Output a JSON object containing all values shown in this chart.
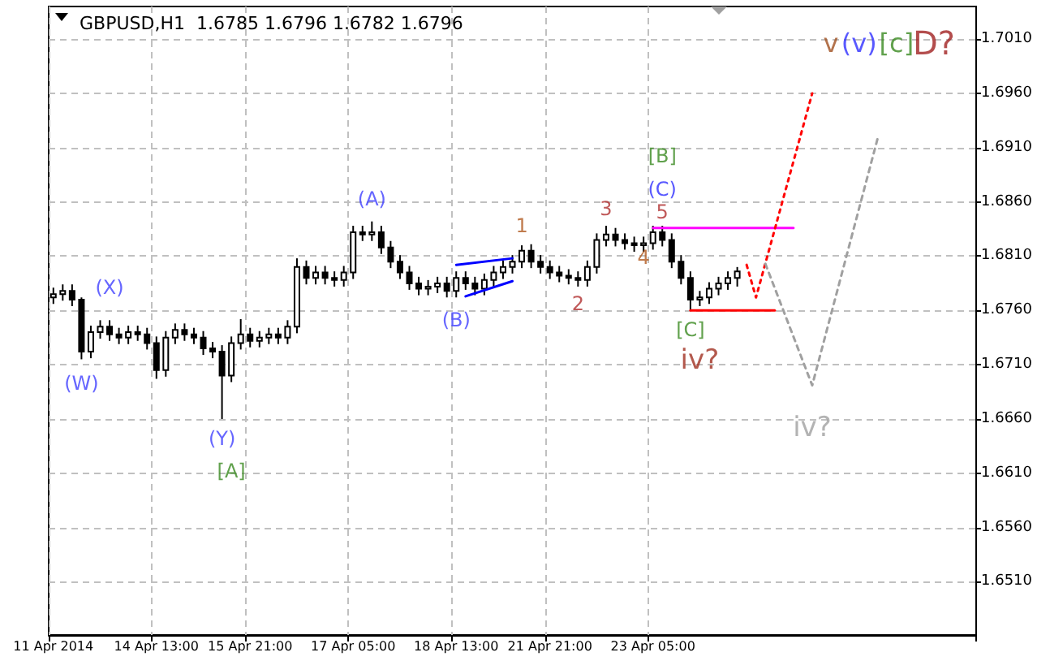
{
  "chart_data": {
    "type": "candlestick",
    "title": "GBPUSD,H1  1.6785 1.6796 1.6782 1.6796",
    "color": "#000000",
    "categories": [
      "11 Apr 2014",
      null,
      null,
      null,
      null,
      null,
      null,
      null,
      null,
      null,
      null,
      "14 Apr 13:00",
      null,
      null,
      null,
      null,
      null,
      null,
      null,
      null,
      null,
      "15 Apr 21:00",
      null,
      null,
      null,
      null,
      null,
      null,
      null,
      null,
      null,
      null,
      "17 Apr 05:00",
      null,
      null,
      null,
      null,
      null,
      null,
      null,
      null,
      null,
      null,
      "18 Apr 13:00",
      null,
      null,
      null,
      null,
      null,
      null,
      null,
      null,
      null,
      "21 Apr 21:00",
      null,
      null,
      null,
      null,
      null,
      null,
      null,
      null,
      null,
      null,
      "23 Apr 05:00",
      null,
      null,
      null,
      null,
      null,
      null,
      null,
      null,
      null,
      null,
      null,
      null,
      null,
      null,
      null,
      null,
      null,
      null,
      null,
      null,
      null,
      null,
      null,
      null,
      null,
      null,
      null,
      null,
      null,
      null,
      null,
      null,
      null,
      null
    ],
    "ohlc": [
      [
        1.6772,
        1.6781,
        1.6766,
        1.6775
      ],
      [
        1.6775,
        1.6784,
        1.6769,
        1.6778
      ],
      [
        1.6778,
        1.6784,
        1.6764,
        1.677
      ],
      [
        1.677,
        1.6772,
        1.6715,
        1.6722
      ],
      [
        1.6722,
        1.6746,
        1.6716,
        1.674
      ],
      [
        1.674,
        1.6751,
        1.6734,
        1.6745
      ],
      [
        1.6745,
        1.6751,
        1.6732,
        1.6738
      ],
      [
        1.6738,
        1.6744,
        1.6729,
        1.6735
      ],
      [
        1.6735,
        1.6746,
        1.6729,
        1.674
      ],
      [
        1.674,
        1.6746,
        1.6732,
        1.6738
      ],
      [
        1.6738,
        1.6744,
        1.6724,
        1.673
      ],
      [
        1.673,
        1.6736,
        1.6697,
        1.6705
      ],
      [
        1.6705,
        1.6741,
        1.6699,
        1.6735
      ],
      [
        1.6735,
        1.6748,
        1.6729,
        1.6742
      ],
      [
        1.6742,
        1.6748,
        1.6732,
        1.6738
      ],
      [
        1.6738,
        1.6744,
        1.6729,
        1.6735
      ],
      [
        1.6735,
        1.6741,
        1.6719,
        1.6725
      ],
      [
        1.6725,
        1.6731,
        1.6716,
        1.6722
      ],
      [
        1.6722,
        1.6728,
        1.666,
        1.67
      ],
      [
        1.67,
        1.6736,
        1.6694,
        1.673
      ],
      [
        1.673,
        1.6752,
        1.6724,
        1.6738
      ],
      [
        1.6738,
        1.6744,
        1.6726,
        1.6732
      ],
      [
        1.6732,
        1.6741,
        1.6726,
        1.6735
      ],
      [
        1.6735,
        1.6744,
        1.6729,
        1.6738
      ],
      [
        1.6738,
        1.6744,
        1.6729,
        1.6735
      ],
      [
        1.6735,
        1.6751,
        1.6729,
        1.6745
      ],
      [
        1.6745,
        1.6808,
        1.6739,
        1.68
      ],
      [
        1.68,
        1.6806,
        1.6784,
        1.679
      ],
      [
        1.679,
        1.6801,
        1.6784,
        1.6795
      ],
      [
        1.6795,
        1.6801,
        1.6784,
        1.679
      ],
      [
        1.679,
        1.6796,
        1.6782,
        1.6788
      ],
      [
        1.6788,
        1.6801,
        1.6782,
        1.6795
      ],
      [
        1.6795,
        1.6838,
        1.6789,
        1.6832
      ],
      [
        1.6832,
        1.6838,
        1.6824,
        1.683
      ],
      [
        1.683,
        1.6842,
        1.6824,
        1.6832
      ],
      [
        1.6832,
        1.6838,
        1.6812,
        1.6818
      ],
      [
        1.6818,
        1.6824,
        1.6799,
        1.6805
      ],
      [
        1.6805,
        1.6811,
        1.6789,
        1.6795
      ],
      [
        1.6795,
        1.6801,
        1.6779,
        1.6785
      ],
      [
        1.6785,
        1.6791,
        1.6774,
        1.678
      ],
      [
        1.678,
        1.6788,
        1.6774,
        1.6782
      ],
      [
        1.6782,
        1.6791,
        1.6776,
        1.6785
      ],
      [
        1.6785,
        1.6791,
        1.6772,
        1.6778
      ],
      [
        1.6778,
        1.6796,
        1.6772,
        1.679
      ],
      [
        1.679,
        1.6796,
        1.6779,
        1.6785
      ],
      [
        1.6785,
        1.6791,
        1.6774,
        1.678
      ],
      [
        1.678,
        1.6794,
        1.6774,
        1.6788
      ],
      [
        1.6788,
        1.6801,
        1.6782,
        1.6795
      ],
      [
        1.6795,
        1.6806,
        1.6789,
        1.68
      ],
      [
        1.68,
        1.6811,
        1.6794,
        1.6805
      ],
      [
        1.6805,
        1.682,
        1.6799,
        1.6815
      ],
      [
        1.6815,
        1.6821,
        1.6799,
        1.6805
      ],
      [
        1.6805,
        1.6811,
        1.6794,
        1.68
      ],
      [
        1.68,
        1.6806,
        1.6789,
        1.6795
      ],
      [
        1.6795,
        1.6801,
        1.6786,
        1.6792
      ],
      [
        1.6792,
        1.6798,
        1.6784,
        1.679
      ],
      [
        1.679,
        1.6796,
        1.6782,
        1.6788
      ],
      [
        1.6788,
        1.6806,
        1.6782,
        1.68
      ],
      [
        1.68,
        1.6831,
        1.6794,
        1.6825
      ],
      [
        1.6825,
        1.6838,
        1.6819,
        1.683
      ],
      [
        1.683,
        1.6836,
        1.6819,
        1.6825
      ],
      [
        1.6825,
        1.6831,
        1.6816,
        1.6822
      ],
      [
        1.6822,
        1.6828,
        1.6814,
        1.682
      ],
      [
        1.682,
        1.6828,
        1.6814,
        1.6822
      ],
      [
        1.6822,
        1.6838,
        1.6816,
        1.6832
      ],
      [
        1.6832,
        1.6838,
        1.6819,
        1.6825
      ],
      [
        1.6825,
        1.6831,
        1.6799,
        1.6805
      ],
      [
        1.6805,
        1.6811,
        1.6784,
        1.679
      ],
      [
        1.679,
        1.6796,
        1.676,
        1.677
      ],
      [
        1.677,
        1.6778,
        1.6764,
        1.6772
      ],
      [
        1.6772,
        1.6786,
        1.6766,
        1.678
      ],
      [
        1.678,
        1.6791,
        1.6774,
        1.6785
      ],
      [
        1.6785,
        1.6796,
        1.6779,
        1.679
      ],
      [
        1.679,
        1.68,
        1.6782,
        1.6796
      ],
      null,
      null,
      null,
      null,
      null,
      null,
      null,
      null,
      null,
      null,
      null,
      null,
      null,
      null,
      null,
      null,
      null,
      null,
      null,
      null,
      null,
      null,
      null,
      null,
      null
    ],
    "series": [
      {
        "type": "line",
        "color": "#0000ff",
        "line_style": "solid",
        "values": [
          null,
          null,
          null,
          null,
          null,
          null,
          null,
          null,
          null,
          null,
          null,
          null,
          null,
          null,
          null,
          null,
          null,
          null,
          null,
          null,
          null,
          null,
          null,
          null,
          null,
          null,
          null,
          null,
          null,
          null,
          null,
          null,
          null,
          null,
          null,
          null,
          null,
          null,
          null,
          null,
          null,
          null,
          null,
          1.6802,
          null,
          null,
          null,
          null,
          null,
          1.6808,
          null,
          null,
          null,
          null,
          null,
          null,
          null,
          null,
          null,
          null,
          null,
          null,
          null,
          null,
          null,
          null,
          null,
          null,
          null,
          null,
          null,
          null,
          null,
          null,
          null,
          null,
          null,
          null,
          null,
          null,
          null,
          null,
          null,
          null,
          null,
          null,
          null,
          null,
          null,
          null,
          null,
          null,
          null,
          null,
          null,
          null,
          null,
          null,
          null
        ]
      },
      {
        "type": "line",
        "color": "#0000ff",
        "line_style": "solid",
        "values": [
          null,
          null,
          null,
          null,
          null,
          null,
          null,
          null,
          null,
          null,
          null,
          null,
          null,
          null,
          null,
          null,
          null,
          null,
          null,
          null,
          null,
          null,
          null,
          null,
          null,
          null,
          null,
          null,
          null,
          null,
          null,
          null,
          null,
          null,
          null,
          null,
          null,
          null,
          null,
          null,
          null,
          null,
          null,
          null,
          1.6773,
          null,
          null,
          null,
          null,
          1.6787,
          null,
          null,
          null,
          null,
          null,
          null,
          null,
          null,
          null,
          null,
          null,
          null,
          null,
          null,
          null,
          null,
          null,
          null,
          null,
          null,
          null,
          null,
          null,
          null,
          null,
          null,
          null,
          null,
          null,
          null,
          null,
          null,
          null,
          null,
          null,
          null,
          null,
          null,
          null,
          null,
          null,
          null,
          null,
          null,
          null,
          null,
          null,
          null,
          null
        ]
      },
      {
        "type": "line",
        "color": "#ff00ff",
        "line_style": "solid",
        "values": [
          null,
          null,
          null,
          null,
          null,
          null,
          null,
          null,
          null,
          null,
          null,
          null,
          null,
          null,
          null,
          null,
          null,
          null,
          null,
          null,
          null,
          null,
          null,
          null,
          null,
          null,
          null,
          null,
          null,
          null,
          null,
          null,
          null,
          null,
          null,
          null,
          null,
          null,
          null,
          null,
          null,
          null,
          null,
          null,
          null,
          null,
          null,
          null,
          null,
          null,
          null,
          null,
          null,
          null,
          null,
          null,
          null,
          null,
          null,
          null,
          null,
          null,
          null,
          null,
          1.6836,
          null,
          null,
          null,
          null,
          null,
          null,
          null,
          null,
          null,
          null,
          null,
          null,
          null,
          null,
          1.6836,
          null,
          null,
          null,
          null,
          null,
          null,
          null,
          null,
          null,
          null,
          null,
          null,
          null,
          null,
          null,
          null,
          null,
          null,
          null
        ]
      },
      {
        "type": "line",
        "color": "#ff0000",
        "line_style": "solid",
        "values": [
          null,
          null,
          null,
          null,
          null,
          null,
          null,
          null,
          null,
          null,
          null,
          null,
          null,
          null,
          null,
          null,
          null,
          null,
          null,
          null,
          null,
          null,
          null,
          null,
          null,
          null,
          null,
          null,
          null,
          null,
          null,
          null,
          null,
          null,
          null,
          null,
          null,
          null,
          null,
          null,
          null,
          null,
          null,
          null,
          null,
          null,
          null,
          null,
          null,
          null,
          null,
          null,
          null,
          null,
          null,
          null,
          null,
          null,
          null,
          null,
          null,
          null,
          null,
          null,
          null,
          null,
          null,
          null,
          1.676,
          null,
          null,
          null,
          null,
          null,
          null,
          null,
          null,
          1.676,
          null,
          null,
          null,
          null,
          null,
          null,
          null,
          null,
          null,
          null,
          null,
          null,
          null,
          null,
          null,
          null,
          null,
          null,
          null,
          null,
          null
        ]
      },
      {
        "type": "line",
        "color": "#ff0000",
        "line_style": "dotted",
        "values": [
          null,
          null,
          null,
          null,
          null,
          null,
          null,
          null,
          null,
          null,
          null,
          null,
          null,
          null,
          null,
          null,
          null,
          null,
          null,
          null,
          null,
          null,
          null,
          null,
          null,
          null,
          null,
          null,
          null,
          null,
          null,
          null,
          null,
          null,
          null,
          null,
          null,
          null,
          null,
          null,
          null,
          null,
          null,
          null,
          null,
          null,
          null,
          null,
          null,
          null,
          null,
          null,
          null,
          null,
          null,
          null,
          null,
          null,
          null,
          null,
          null,
          null,
          null,
          null,
          null,
          null,
          null,
          null,
          null,
          null,
          null,
          null,
          null,
          null,
          1.6802,
          1.6772,
          null,
          null,
          null,
          null,
          null,
          1.696,
          null,
          null,
          null,
          null,
          null,
          null,
          null,
          null,
          null,
          null,
          null,
          null,
          null,
          null,
          null,
          null,
          null
        ]
      },
      {
        "type": "line",
        "color": "#a0a0a0",
        "line_style": "dashed",
        "values": [
          null,
          null,
          null,
          null,
          null,
          null,
          null,
          null,
          null,
          null,
          null,
          null,
          null,
          null,
          null,
          null,
          null,
          null,
          null,
          null,
          null,
          null,
          null,
          null,
          null,
          null,
          null,
          null,
          null,
          null,
          null,
          null,
          null,
          null,
          null,
          null,
          null,
          null,
          null,
          null,
          null,
          null,
          null,
          null,
          null,
          null,
          null,
          null,
          null,
          null,
          null,
          null,
          null,
          null,
          null,
          null,
          null,
          null,
          null,
          null,
          null,
          null,
          null,
          null,
          null,
          null,
          null,
          null,
          null,
          null,
          null,
          null,
          null,
          null,
          null,
          null,
          1.6803,
          null,
          null,
          null,
          null,
          1.6691,
          null,
          null,
          null,
          null,
          null,
          null,
          1.6919,
          null,
          null,
          null,
          null,
          null,
          null,
          null,
          null,
          null,
          null
        ]
      }
    ],
    "annotations": [
      "(X)",
      "(W)",
      "(Y)",
      "[A]",
      "(A)",
      "(B)",
      "1",
      "2",
      "3",
      "4",
      "5",
      "(C)",
      "[B]",
      "[C]",
      "iv?",
      "iv?",
      "v",
      "(v)",
      "[c]",
      "D?"
    ],
    "ylim": [
      1.6461,
      1.704
    ],
    "yticks": [
      {
        "value": 1.651,
        "label": "1.6510"
      },
      {
        "value": 1.656,
        "label": "1.6560"
      },
      {
        "value": 1.661,
        "label": "1.6610"
      },
      {
        "value": 1.666,
        "label": "1.6660"
      },
      {
        "value": 1.671,
        "label": "1.6710"
      },
      {
        "value": 1.676,
        "label": "1.6760"
      },
      {
        "value": 1.681,
        "label": "1.6810"
      },
      {
        "value": 1.686,
        "label": "1.6860"
      },
      {
        "value": 1.691,
        "label": "1.6910"
      },
      {
        "value": 1.696,
        "label": "1.6960"
      },
      {
        "value": 1.701,
        "label": "1.7010"
      }
    ],
    "grid": true
  }
}
